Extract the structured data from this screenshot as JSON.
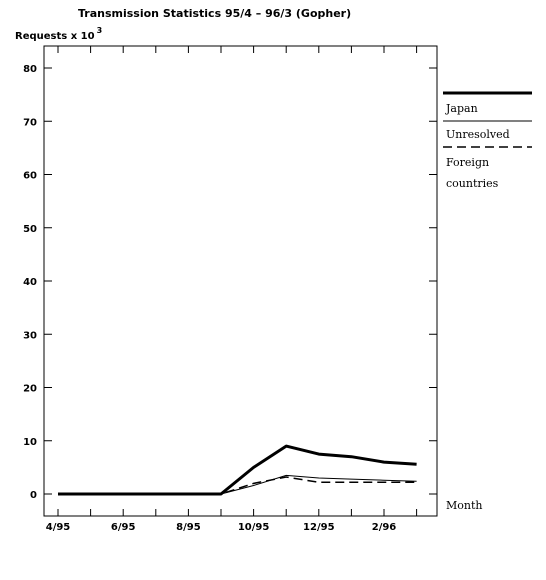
{
  "chart_data": {
    "type": "line",
    "title": "Transmission Statistics 95/4 – 96/3 (Gopher)",
    "ylabel": "Requests x 10",
    "ylabel_exponent": "3",
    "xlabel": "Month",
    "ylim": [
      0,
      80
    ],
    "yticks": [
      0,
      10,
      20,
      30,
      40,
      50,
      60,
      70,
      80
    ],
    "x": [
      "95/4",
      "95/5",
      "95/6",
      "95/7",
      "95/8",
      "95/9",
      "95/10",
      "95/11",
      "95/12",
      "96/1",
      "96/2",
      "96/3"
    ],
    "xtick_labels": [
      {
        "index": 0,
        "label": "4/95"
      },
      {
        "index": 2,
        "label": "6/95"
      },
      {
        "index": 4,
        "label": "8/95"
      },
      {
        "index": 6,
        "label": "10/95"
      },
      {
        "index": 8,
        "label": "12/95"
      },
      {
        "index": 10,
        "label": "2/96"
      }
    ],
    "legend_position": "right",
    "series": [
      {
        "name": "Japan",
        "style": "thick-solid",
        "values": [
          0,
          0,
          0,
          0,
          0,
          0,
          5,
          9,
          7.5,
          7,
          6,
          5.6
        ]
      },
      {
        "name": "Unresolved",
        "style": "thin-solid",
        "values": [
          0,
          0,
          0,
          0,
          0,
          0,
          1.6,
          3.5,
          3,
          2.8,
          2.6,
          2.4
        ]
      },
      {
        "name": "Foreign countries",
        "name_lines": [
          "Foreign",
          "countries"
        ],
        "style": "dashed",
        "values": [
          0,
          0,
          0,
          0,
          0,
          0,
          2,
          3.2,
          2.2,
          2.2,
          2.2,
          2.2
        ]
      }
    ]
  }
}
